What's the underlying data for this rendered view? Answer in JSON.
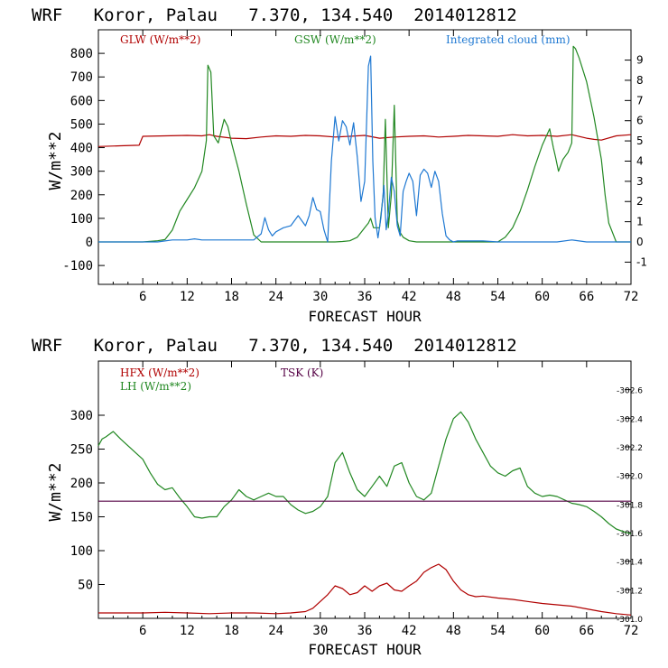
{
  "chart_data": [
    {
      "type": "line",
      "title": "WRF   Koror, Palau   7.370, 134.540  2014012812",
      "xlabel": "FORECAST HOUR",
      "ylabel": "W/m**2",
      "xlim": [
        0,
        72
      ],
      "ylim": [
        -180,
        900
      ],
      "y2lim": [
        -2.1,
        10.5
      ],
      "x_ticks": [
        "6",
        "12",
        "18",
        "24",
        "30",
        "36",
        "42",
        "48",
        "54",
        "60",
        "66",
        "72"
      ],
      "y_ticks": [
        "-100",
        "0",
        "100",
        "200",
        "300",
        "400",
        "500",
        "600",
        "700",
        "800"
      ],
      "y2_ticks": [
        "-1",
        "0",
        "1",
        "2",
        "3",
        "4",
        "5",
        "6",
        "7",
        "8",
        "9"
      ],
      "colors": {
        "glw": "#b00000",
        "gsw": "#228822",
        "cloud": "#1e78d2",
        "axis": "#000000"
      },
      "series": [
        {
          "name": "GLW (W/m**2)",
          "axis": "left",
          "x": [
            0,
            3,
            5.5,
            6,
            9,
            12,
            14,
            15,
            16,
            18,
            20,
            22,
            24,
            26,
            28,
            30,
            32,
            34,
            36,
            38,
            40,
            42,
            44,
            46,
            48,
            50,
            52,
            54,
            56,
            58,
            60,
            62,
            64,
            66,
            67,
            68,
            70,
            72
          ],
          "values": [
            405,
            408,
            410,
            448,
            450,
            452,
            450,
            455,
            448,
            440,
            438,
            445,
            450,
            448,
            452,
            450,
            445,
            448,
            452,
            440,
            445,
            448,
            450,
            445,
            448,
            452,
            450,
            448,
            455,
            450,
            452,
            448,
            455,
            440,
            435,
            432,
            450,
            455
          ]
        },
        {
          "name": "GSW (W/m**2)",
          "axis": "left",
          "x": [
            0,
            6,
            8,
            9,
            10,
            11,
            12,
            13,
            14,
            14.6,
            14.8,
            15.2,
            15.6,
            16.2,
            17,
            17.5,
            18,
            19,
            20,
            21,
            22,
            23,
            24,
            30,
            31,
            32,
            33,
            34,
            35,
            36,
            36.5,
            36.8,
            37.2,
            38,
            38.5,
            38.8,
            39.2,
            39.6,
            40,
            40.4,
            40.8,
            41.2,
            42,
            43,
            44,
            46,
            48,
            54,
            55,
            56,
            57,
            58,
            59,
            60,
            61,
            61.5,
            61.8,
            62.2,
            62.8,
            63.5,
            64,
            64.2,
            64.5,
            65,
            66,
            67,
            68,
            68.5,
            69,
            70,
            72
          ],
          "values": [
            0,
            0,
            5,
            10,
            50,
            130,
            180,
            230,
            300,
            430,
            750,
            720,
            450,
            420,
            520,
            490,
            420,
            300,
            160,
            30,
            0,
            0,
            0,
            0,
            0,
            0,
            2,
            5,
            20,
            60,
            80,
            100,
            60,
            60,
            200,
            520,
            60,
            200,
            580,
            90,
            40,
            20,
            5,
            0,
            0,
            0,
            0,
            0,
            20,
            60,
            130,
            220,
            320,
            410,
            480,
            400,
            360,
            300,
            350,
            380,
            420,
            830,
            820,
            780,
            680,
            530,
            350,
            200,
            80,
            0,
            0
          ]
        },
        {
          "name": "Integrated cloud (mm)",
          "axis": "right",
          "x": [
            0,
            8,
            9,
            10,
            11,
            12,
            13,
            14,
            16,
            18,
            20,
            21,
            22,
            22.5,
            23,
            23.5,
            24,
            25,
            26,
            27,
            28,
            28.5,
            29,
            29.5,
            30,
            30.5,
            31,
            31.5,
            32,
            32.5,
            33,
            33.5,
            34,
            34.5,
            35,
            35.5,
            36,
            36.5,
            36.8,
            37.1,
            37.4,
            37.8,
            38.2,
            38.6,
            38.9,
            39.2,
            39.6,
            40,
            40.4,
            40.8,
            41.2,
            41.6,
            42,
            42.5,
            43,
            43.5,
            44,
            44.5,
            45,
            45.5,
            46,
            46.5,
            47,
            47.5,
            48,
            48.5,
            49,
            50,
            52,
            54,
            56,
            58,
            60,
            62,
            64,
            66,
            68,
            70,
            72
          ],
          "values": [
            0,
            0,
            0.05,
            0.1,
            0.1,
            0.1,
            0.15,
            0.1,
            0.1,
            0.1,
            0.1,
            0.1,
            0.4,
            1.2,
            0.6,
            0.3,
            0.5,
            0.7,
            0.8,
            1.3,
            0.8,
            1.3,
            2.2,
            1.6,
            1.5,
            0.6,
            0,
            4.0,
            6.2,
            5.0,
            6.0,
            5.7,
            4.8,
            5.9,
            4.2,
            2.0,
            3.0,
            8.7,
            9.2,
            4.0,
            1.2,
            0.2,
            1.2,
            2.8,
            0.6,
            1.4,
            3.2,
            2.5,
            0.8,
            0.3,
            2.5,
            3.0,
            3.4,
            3.0,
            1.3,
            3.3,
            3.6,
            3.4,
            2.7,
            3.5,
            3.0,
            1.4,
            0.3,
            0.1,
            0,
            0.05,
            0.05,
            0.05,
            0.05,
            0,
            0,
            0,
            0,
            0,
            0.1,
            0,
            0,
            0,
            0
          ]
        }
      ]
    },
    {
      "type": "line",
      "title": "WRF   Koror, Palau   7.370, 134.540  2014012812",
      "xlabel": "FORECAST HOUR",
      "ylabel": "W/m**2",
      "xlim": [
        0,
        72
      ],
      "ylim": [
        0,
        380
      ],
      "y2lim": [
        301.0,
        302.8
      ],
      "x_ticks": [
        "6",
        "12",
        "18",
        "24",
        "30",
        "36",
        "42",
        "48",
        "54",
        "60",
        "66",
        "72"
      ],
      "y_ticks": [
        "50",
        "100",
        "150",
        "200",
        "250",
        "300"
      ],
      "y2_ticks": [
        "301.0",
        "301.2",
        "301.4",
        "301.6",
        "301.8",
        "302.0",
        "302.2",
        "302.4",
        "302.6"
      ],
      "colors": {
        "hfx": "#b00000",
        "lh": "#228822",
        "tsk": "#550044",
        "axis": "#000000"
      },
      "series": [
        {
          "name": "HFX (W/m**2)",
          "axis": "left",
          "x": [
            0,
            3,
            6,
            9,
            12,
            15,
            18,
            21,
            24,
            26,
            28,
            29,
            30,
            31,
            32,
            33,
            34,
            35,
            36,
            37,
            38,
            39,
            40,
            41,
            42,
            43,
            44,
            45,
            46,
            47,
            48,
            49,
            50,
            51,
            52,
            54,
            56,
            58,
            60,
            62,
            64,
            66,
            68,
            70,
            72
          ],
          "values": [
            8,
            8,
            8,
            9,
            8,
            7,
            8,
            8,
            7,
            8,
            10,
            15,
            25,
            35,
            48,
            44,
            35,
            38,
            48,
            40,
            48,
            52,
            42,
            40,
            48,
            55,
            68,
            75,
            80,
            72,
            55,
            42,
            35,
            32,
            33,
            30,
            28,
            25,
            22,
            20,
            18,
            14,
            10,
            7,
            5
          ]
        },
        {
          "name": "LH (W/m**2)",
          "axis": "left",
          "x": [
            0,
            0.5,
            1,
            2,
            3,
            4,
            5,
            6,
            7,
            8,
            9,
            10,
            11,
            12,
            13,
            14,
            15,
            16,
            17,
            18,
            19,
            20,
            21,
            22,
            23,
            24,
            25,
            26,
            27,
            28,
            29,
            30,
            31,
            32,
            33,
            34,
            35,
            36,
            37,
            38,
            39,
            40,
            41,
            42,
            43,
            44,
            45,
            46,
            47,
            48,
            49,
            50,
            51,
            52,
            53,
            54,
            55,
            56,
            57,
            58,
            59,
            60,
            61,
            62,
            63,
            64,
            65,
            66,
            67,
            68,
            69,
            70,
            71,
            72
          ],
          "values": [
            255,
            265,
            268,
            276,
            265,
            255,
            245,
            235,
            215,
            198,
            190,
            193,
            178,
            165,
            150,
            148,
            150,
            150,
            165,
            175,
            190,
            180,
            175,
            180,
            185,
            180,
            180,
            168,
            160,
            155,
            158,
            165,
            180,
            230,
            245,
            215,
            190,
            180,
            195,
            210,
            195,
            225,
            230,
            200,
            180,
            175,
            185,
            225,
            265,
            295,
            305,
            290,
            265,
            245,
            225,
            215,
            210,
            218,
            222,
            195,
            185,
            180,
            182,
            180,
            175,
            170,
            168,
            165,
            158,
            150,
            140,
            132,
            128,
            125
          ]
        },
        {
          "name": "TSK (K)",
          "axis": "right",
          "x": [
            0,
            72
          ],
          "values": [
            301.82,
            301.82
          ]
        }
      ]
    }
  ]
}
